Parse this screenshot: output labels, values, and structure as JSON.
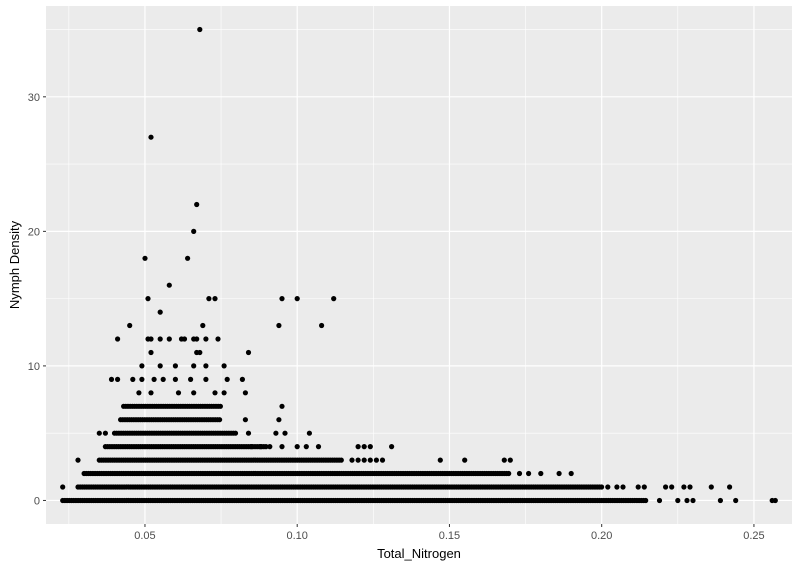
{
  "chart_data": {
    "type": "scatter",
    "title": "",
    "xlabel": "Total_Nitrogen",
    "ylabel": "Nymph Density",
    "xlim": [
      0.0175,
      0.2625
    ],
    "ylim": [
      -1.75,
      36.75
    ],
    "x_ticks": [
      0.05,
      0.1,
      0.15,
      0.2,
      0.25
    ],
    "x_tick_labels": [
      "0.05",
      "0.10",
      "0.15",
      "0.20",
      "0.25"
    ],
    "y_ticks": [
      0,
      10,
      20,
      30
    ],
    "y_tick_labels": [
      "0",
      "10",
      "20",
      "30"
    ],
    "grid": true,
    "legend": "none",
    "point_color": "#000000",
    "panel_background": "#EBEBEB",
    "dense_rows": [
      {
        "y": 0,
        "x_from": 0.023,
        "x_to": 0.215
      },
      {
        "y": 1,
        "x_from": 0.028,
        "x_to": 0.2
      },
      {
        "y": 2,
        "x_from": 0.03,
        "x_to": 0.17
      },
      {
        "y": 3,
        "x_from": 0.035,
        "x_to": 0.115
      },
      {
        "y": 4,
        "x_from": 0.037,
        "x_to": 0.09
      },
      {
        "y": 5,
        "x_from": 0.04,
        "x_to": 0.08
      },
      {
        "y": 6,
        "x_from": 0.042,
        "x_to": 0.075
      },
      {
        "y": 7,
        "x_from": 0.043,
        "x_to": 0.075
      }
    ],
    "points": [
      {
        "x": 0.068,
        "y": 35
      },
      {
        "x": 0.052,
        "y": 27
      },
      {
        "x": 0.067,
        "y": 22
      },
      {
        "x": 0.066,
        "y": 20
      },
      {
        "x": 0.05,
        "y": 18
      },
      {
        "x": 0.064,
        "y": 18
      },
      {
        "x": 0.058,
        "y": 16
      },
      {
        "x": 0.051,
        "y": 15
      },
      {
        "x": 0.071,
        "y": 15
      },
      {
        "x": 0.073,
        "y": 15
      },
      {
        "x": 0.095,
        "y": 15
      },
      {
        "x": 0.1,
        "y": 15
      },
      {
        "x": 0.112,
        "y": 15
      },
      {
        "x": 0.055,
        "y": 14
      },
      {
        "x": 0.045,
        "y": 13
      },
      {
        "x": 0.069,
        "y": 13
      },
      {
        "x": 0.094,
        "y": 13
      },
      {
        "x": 0.108,
        "y": 13
      },
      {
        "x": 0.041,
        "y": 12
      },
      {
        "x": 0.051,
        "y": 12
      },
      {
        "x": 0.052,
        "y": 12
      },
      {
        "x": 0.055,
        "y": 12
      },
      {
        "x": 0.058,
        "y": 12
      },
      {
        "x": 0.062,
        "y": 12
      },
      {
        "x": 0.063,
        "y": 12
      },
      {
        "x": 0.066,
        "y": 12
      },
      {
        "x": 0.067,
        "y": 12
      },
      {
        "x": 0.07,
        "y": 12
      },
      {
        "x": 0.074,
        "y": 12
      },
      {
        "x": 0.052,
        "y": 11
      },
      {
        "x": 0.067,
        "y": 11
      },
      {
        "x": 0.068,
        "y": 11
      },
      {
        "x": 0.084,
        "y": 11
      },
      {
        "x": 0.049,
        "y": 10
      },
      {
        "x": 0.055,
        "y": 10
      },
      {
        "x": 0.06,
        "y": 10
      },
      {
        "x": 0.066,
        "y": 10
      },
      {
        "x": 0.07,
        "y": 10
      },
      {
        "x": 0.076,
        "y": 10
      },
      {
        "x": 0.039,
        "y": 9
      },
      {
        "x": 0.041,
        "y": 9
      },
      {
        "x": 0.046,
        "y": 9
      },
      {
        "x": 0.049,
        "y": 9
      },
      {
        "x": 0.053,
        "y": 9
      },
      {
        "x": 0.056,
        "y": 9
      },
      {
        "x": 0.06,
        "y": 9
      },
      {
        "x": 0.065,
        "y": 9
      },
      {
        "x": 0.07,
        "y": 9
      },
      {
        "x": 0.077,
        "y": 9
      },
      {
        "x": 0.082,
        "y": 9
      },
      {
        "x": 0.048,
        "y": 8
      },
      {
        "x": 0.052,
        "y": 8
      },
      {
        "x": 0.061,
        "y": 8
      },
      {
        "x": 0.066,
        "y": 8
      },
      {
        "x": 0.073,
        "y": 8
      },
      {
        "x": 0.076,
        "y": 8
      },
      {
        "x": 0.083,
        "y": 8
      },
      {
        "x": 0.095,
        "y": 7
      },
      {
        "x": 0.083,
        "y": 6
      },
      {
        "x": 0.094,
        "y": 6
      },
      {
        "x": 0.035,
        "y": 5
      },
      {
        "x": 0.037,
        "y": 5
      },
      {
        "x": 0.084,
        "y": 5
      },
      {
        "x": 0.093,
        "y": 5
      },
      {
        "x": 0.096,
        "y": 5
      },
      {
        "x": 0.104,
        "y": 5
      },
      {
        "x": 0.085,
        "y": 4
      },
      {
        "x": 0.088,
        "y": 4
      },
      {
        "x": 0.091,
        "y": 4
      },
      {
        "x": 0.095,
        "y": 4
      },
      {
        "x": 0.1,
        "y": 4
      },
      {
        "x": 0.103,
        "y": 4
      },
      {
        "x": 0.107,
        "y": 4
      },
      {
        "x": 0.12,
        "y": 4
      },
      {
        "x": 0.122,
        "y": 4
      },
      {
        "x": 0.124,
        "y": 4
      },
      {
        "x": 0.131,
        "y": 4
      },
      {
        "x": 0.028,
        "y": 3
      },
      {
        "x": 0.118,
        "y": 3
      },
      {
        "x": 0.12,
        "y": 3
      },
      {
        "x": 0.122,
        "y": 3
      },
      {
        "x": 0.124,
        "y": 3
      },
      {
        "x": 0.126,
        "y": 3
      },
      {
        "x": 0.128,
        "y": 3
      },
      {
        "x": 0.147,
        "y": 3
      },
      {
        "x": 0.155,
        "y": 3
      },
      {
        "x": 0.168,
        "y": 3
      },
      {
        "x": 0.17,
        "y": 3
      },
      {
        "x": 0.023,
        "y": 1
      },
      {
        "x": 0.173,
        "y": 2
      },
      {
        "x": 0.176,
        "y": 2
      },
      {
        "x": 0.18,
        "y": 2
      },
      {
        "x": 0.186,
        "y": 2
      },
      {
        "x": 0.19,
        "y": 2
      },
      {
        "x": 0.202,
        "y": 1
      },
      {
        "x": 0.205,
        "y": 1
      },
      {
        "x": 0.207,
        "y": 1
      },
      {
        "x": 0.212,
        "y": 1
      },
      {
        "x": 0.214,
        "y": 1
      },
      {
        "x": 0.221,
        "y": 1
      },
      {
        "x": 0.223,
        "y": 1
      },
      {
        "x": 0.227,
        "y": 1
      },
      {
        "x": 0.229,
        "y": 1
      },
      {
        "x": 0.236,
        "y": 1
      },
      {
        "x": 0.242,
        "y": 1
      },
      {
        "x": 0.219,
        "y": 0
      },
      {
        "x": 0.225,
        "y": 0
      },
      {
        "x": 0.228,
        "y": 0
      },
      {
        "x": 0.23,
        "y": 0
      },
      {
        "x": 0.239,
        "y": 0
      },
      {
        "x": 0.244,
        "y": 0
      },
      {
        "x": 0.256,
        "y": 0
      },
      {
        "x": 0.257,
        "y": 0
      }
    ]
  }
}
